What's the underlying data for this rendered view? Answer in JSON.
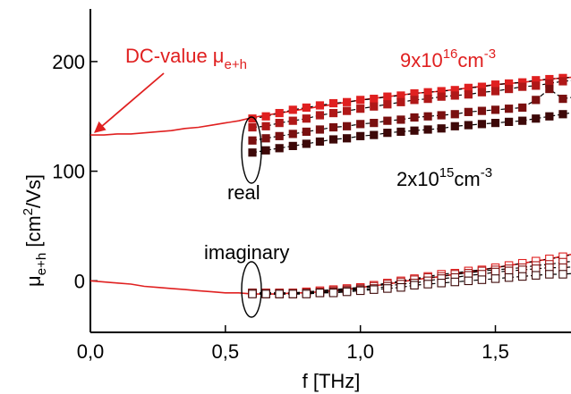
{
  "chart_data": {
    "type": "line",
    "xlabel": "f [THz]",
    "ylabel": {
      "base": "μ",
      "sub": "e+h",
      "unit_pre": " [cm",
      "unit_sup": "2",
      "unit_post": "/Vs]"
    },
    "xlim": [
      0.0,
      1.78
    ],
    "ylim": [
      -47,
      248
    ],
    "xticks": [
      {
        "v": 0.0,
        "label": "0,0"
      },
      {
        "v": 0.5,
        "label": "0,5"
      },
      {
        "v": 1.0,
        "label": "1,0"
      },
      {
        "v": 1.5,
        "label": "1,5"
      }
    ],
    "yticks": [
      {
        "v": 0,
        "label": "0"
      },
      {
        "v": 100,
        "label": "100"
      },
      {
        "v": 200,
        "label": "200"
      }
    ],
    "annotations": {
      "dc_value": {
        "text": "DC-value μ",
        "sub": "e+h"
      },
      "high_density": {
        "mantissa": "9x10",
        "exp": "16",
        "unit": "cm",
        "unit_exp": "-3"
      },
      "low_density": {
        "mantissa": "2x10",
        "exp": "15",
        "unit": "cm",
        "unit_exp": "-3"
      },
      "real": "real",
      "imaginary": "imaginary"
    },
    "colors": [
      "#e02020",
      "#b01818",
      "#7a1010",
      "#3d0808"
    ],
    "fit_color": "#e02020",
    "dc_value": 133,
    "x": [
      0.6,
      0.65,
      0.7,
      0.75,
      0.8,
      0.85,
      0.9,
      0.95,
      1.0,
      1.05,
      1.1,
      1.15,
      1.2,
      1.25,
      1.3,
      1.35,
      1.4,
      1.45,
      1.5,
      1.55,
      1.6,
      1.65,
      1.7,
      1.75,
      1.8
    ],
    "series": [
      {
        "real": [
          148,
          150,
          153,
          156,
          158,
          160,
          162,
          163,
          165,
          166,
          168,
          169,
          171,
          172,
          173,
          174,
          176,
          177,
          179,
          180,
          181,
          183,
          184,
          185,
          186
        ],
        "imag": [
          -11,
          -11,
          -11,
          -11,
          -10,
          -9,
          -8,
          -7,
          -6,
          -4,
          -2,
          0,
          2,
          4,
          6,
          7,
          9,
          10,
          12,
          14,
          16,
          18,
          20,
          22,
          25
        ]
      },
      {
        "real": [
          140,
          141,
          144,
          146,
          148,
          151,
          153,
          155,
          157,
          159,
          161,
          163,
          165,
          166,
          168,
          169,
          170,
          172,
          173,
          175,
          177,
          178,
          180,
          182,
          183
        ],
        "imag": [
          -11,
          -11,
          -11,
          -11,
          -11,
          -10,
          -9,
          -8,
          -7,
          -5,
          -3,
          -1,
          1,
          3,
          4,
          6,
          7,
          9,
          10,
          11,
          12,
          14,
          15,
          17,
          18
        ]
      },
      {
        "real": [
          128,
          130,
          132,
          134,
          136,
          138,
          140,
          141,
          143,
          144,
          146,
          147,
          149,
          150,
          151,
          152,
          154,
          155,
          156,
          157,
          158,
          165,
          175,
          166,
          168
        ],
        "imag": [
          -11,
          -12,
          -12,
          -12,
          -11,
          -11,
          -10,
          -9,
          -8,
          -7,
          -5,
          -3,
          -2,
          0,
          2,
          3,
          5,
          6,
          8,
          9,
          10,
          11,
          12,
          12,
          13
        ]
      },
      {
        "real": [
          117,
          119,
          121,
          123,
          125,
          127,
          129,
          130,
          132,
          133,
          135,
          136,
          137,
          138,
          139,
          141,
          142,
          143,
          144,
          145,
          146,
          148,
          150,
          152,
          154
        ],
        "imag": [
          -12,
          -12,
          -12,
          -12,
          -12,
          -11,
          -11,
          -10,
          -9,
          -8,
          -7,
          -6,
          -4,
          -3,
          -2,
          -1,
          0,
          1,
          2,
          3,
          4,
          5,
          6,
          6,
          7
        ]
      }
    ],
    "fit_real": {
      "x": [
        0,
        0.05,
        0.1,
        0.15,
        0.2,
        0.25,
        0.3,
        0.35,
        0.4,
        0.45,
        0.5,
        0.55,
        0.6,
        0.65,
        0.7,
        0.75,
        0.8,
        0.85,
        0.9,
        0.95,
        1.0,
        1.1,
        1.2,
        1.3,
        1.4,
        1.5,
        1.6,
        1.7,
        1.8
      ],
      "y": [
        133,
        133,
        134,
        134,
        135,
        136,
        137,
        139,
        140,
        142,
        144,
        146,
        149,
        151,
        153,
        155,
        157,
        159,
        161,
        163,
        165,
        168,
        171,
        173,
        176,
        179,
        181,
        184,
        186
      ]
    },
    "fit_imag": {
      "x": [
        0,
        0.05,
        0.1,
        0.15,
        0.2,
        0.25,
        0.3,
        0.35,
        0.4,
        0.45,
        0.5,
        0.55,
        0.6,
        0.65,
        0.7,
        0.75,
        0.8,
        0.85,
        0.9,
        0.95,
        1.0,
        1.1,
        1.2,
        1.3,
        1.4,
        1.5,
        1.6,
        1.7,
        1.8
      ],
      "y": [
        0,
        -1,
        -2,
        -3,
        -5,
        -6,
        -7,
        -8,
        -9,
        -10,
        -11,
        -11,
        -12,
        -12,
        -12,
        -11,
        -11,
        -10,
        -9,
        -8,
        -6,
        -3,
        1,
        4,
        8,
        12,
        16,
        20,
        25
      ]
    }
  }
}
